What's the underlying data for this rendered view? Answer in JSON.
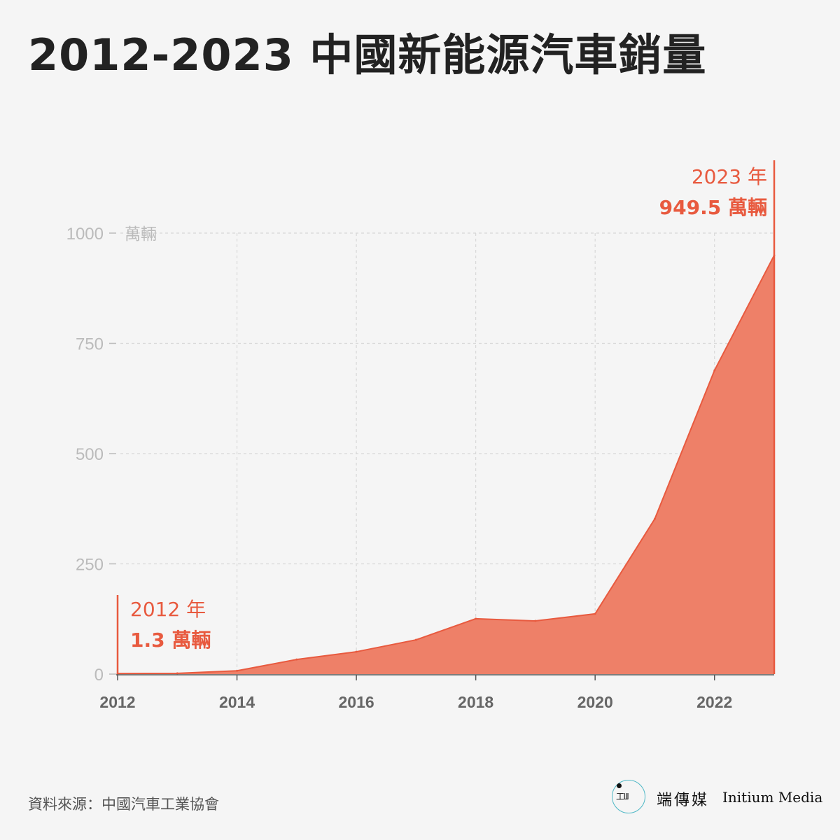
{
  "title": "2012-2023 中國新能源汽車銷量",
  "source": "資料來源：中國汽車工業協會",
  "brand": {
    "name_cn": "端傳媒",
    "name_en": "Initium Media",
    "logo_icon": "initium-logo-icon"
  },
  "colors": {
    "area_fill": "#ee8068",
    "accent": "#e85a3f",
    "grid": "#d8d8d8",
    "axis_text": "#bbbbbb",
    "xtick_text": "#666666"
  },
  "chart_data": {
    "type": "area",
    "title": "2012-2023 中國新能源汽車銷量",
    "xlabel": "",
    "ylabel": "萬輛",
    "x": [
      2012,
      2013,
      2014,
      2015,
      2016,
      2017,
      2018,
      2019,
      2020,
      2021,
      2022,
      2023
    ],
    "series": [
      {
        "values": [
          1.3,
          1.8,
          7.5,
          33.1,
          50.7,
          77.7,
          125.6,
          120.6,
          136.7,
          352.1,
          688.7,
          949.5
        ]
      }
    ],
    "xlim": [
      2012,
      2023
    ],
    "ylim": [
      0,
      1000
    ],
    "xticks": [
      "2012",
      "2014",
      "2016",
      "2018",
      "2020",
      "2022"
    ],
    "xtick_values": [
      2012,
      2014,
      2016,
      2018,
      2020,
      2022
    ],
    "yticks": [
      "0",
      "250",
      "500",
      "750",
      "1000"
    ],
    "ytick_values": [
      0,
      250,
      500,
      750,
      1000
    ],
    "y_unit_label": "萬輛",
    "grid": true,
    "annotations": [
      {
        "x": 2012,
        "year_label": "2012 年",
        "value_label": "1.3 萬輛",
        "side": "right"
      },
      {
        "x": 2023,
        "year_label": "2023 年",
        "value_label": "949.5 萬輛",
        "side": "left"
      }
    ]
  }
}
